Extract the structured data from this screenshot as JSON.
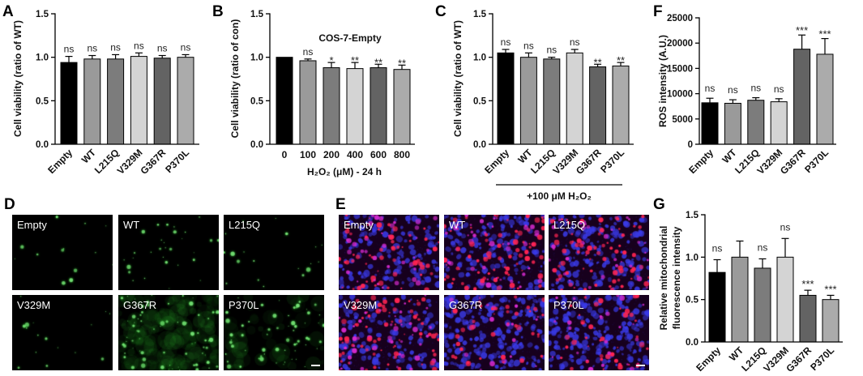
{
  "chart_data": [
    {
      "panel": "A",
      "type": "bar",
      "ylabel": "Cell viability (ratio of WT)",
      "categories": [
        "Empty",
        "WT",
        "L215Q",
        "V329M",
        "G367R",
        "P370L"
      ],
      "values": [
        0.94,
        0.98,
        0.98,
        1.01,
        0.99,
        1.0
      ],
      "errors": [
        0.07,
        0.04,
        0.05,
        0.04,
        0.03,
        0.03
      ],
      "significance": [
        "ns",
        "ns",
        "ns",
        "ns",
        "ns",
        "ns"
      ],
      "ylim": [
        0,
        1.5
      ],
      "yticks": [
        0,
        0.5,
        1.0,
        1.5
      ],
      "ytick_labels": [
        "0.0",
        "0.5",
        "1.0",
        "1.5"
      ],
      "grid": false,
      "colors": [
        "#000000",
        "#9a9a9a",
        "#7c7c7c",
        "#d4d4d4",
        "#636363",
        "#ababab"
      ]
    },
    {
      "panel": "B",
      "type": "bar",
      "title": "COS-7-Empty",
      "xlabel": "H₂O₂ (μM) - 24 h",
      "ylabel": "Cell viability (ratio of con)",
      "categories": [
        "0",
        "100",
        "200",
        "400",
        "600",
        "800"
      ],
      "values": [
        1.0,
        0.96,
        0.88,
        0.87,
        0.88,
        0.86
      ],
      "errors": [
        0,
        0.02,
        0.06,
        0.07,
        0.04,
        0.05
      ],
      "significance": [
        "",
        "ns",
        "*",
        "**",
        "**",
        "**"
      ],
      "ylim": [
        0,
        1.5
      ],
      "yticks": [
        0,
        0.5,
        1.0,
        1.5
      ],
      "ytick_labels": [
        "0.0",
        "0.5",
        "1.0",
        "1.5"
      ],
      "grid": false,
      "colors": [
        "#000000",
        "#9a9a9a",
        "#7c7c7c",
        "#d4d4d4",
        "#636363",
        "#ababab"
      ]
    },
    {
      "panel": "C",
      "type": "bar",
      "xlabel": "+100 μM H₂O₂",
      "ylabel": "Cell viability (ratio of WT)",
      "categories": [
        "Empty",
        "WT",
        "L215Q",
        "V329M",
        "G367R",
        "P370L"
      ],
      "values": [
        1.05,
        1.0,
        0.98,
        1.05,
        0.89,
        0.9
      ],
      "errors": [
        0.04,
        0.05,
        0.02,
        0.04,
        0.03,
        0.04
      ],
      "significance": [
        "ns",
        "ns",
        "ns",
        "ns",
        "**",
        "**"
      ],
      "ylim": [
        0,
        1.5
      ],
      "yticks": [
        0,
        0.5,
        1.0,
        1.5
      ],
      "ytick_labels": [
        "0.0",
        "0.5",
        "1.0",
        "1.5"
      ],
      "grid": false,
      "colors": [
        "#000000",
        "#9a9a9a",
        "#7c7c7c",
        "#d4d4d4",
        "#636363",
        "#ababab"
      ]
    },
    {
      "panel": "F",
      "type": "bar",
      "ylabel": "ROS intensity (A.U.)",
      "categories": [
        "Empty",
        "WT",
        "L215Q",
        "V329M",
        "G367R",
        "P370L"
      ],
      "values": [
        8200,
        8100,
        8700,
        8400,
        18800,
        17800
      ],
      "errors": [
        900,
        700,
        500,
        600,
        2800,
        3100
      ],
      "significance": [
        "ns",
        "ns",
        "ns",
        "ns",
        "***",
        "***"
      ],
      "ylim": [
        0,
        25000
      ],
      "yticks": [
        0,
        5000,
        10000,
        15000,
        20000,
        25000
      ],
      "ytick_labels": [
        "0",
        "5000",
        "10000",
        "15000",
        "20000",
        "25000"
      ],
      "grid": false,
      "colors": [
        "#000000",
        "#9a9a9a",
        "#7c7c7c",
        "#d4d4d4",
        "#636363",
        "#ababab"
      ]
    },
    {
      "panel": "G",
      "type": "bar",
      "ylabel": [
        "Relative mitochondrial",
        "fluorescence intensity"
      ],
      "categories": [
        "Empty",
        "WT",
        "L215Q",
        "V329M",
        "G367R",
        "P370L"
      ],
      "values": [
        0.82,
        1.0,
        0.87,
        1.0,
        0.55,
        0.5
      ],
      "errors": [
        0.15,
        0.19,
        0.11,
        0.22,
        0.06,
        0.05
      ],
      "significance": [
        "ns",
        "",
        "ns",
        "ns",
        "***",
        "***"
      ],
      "ylim": [
        0,
        1.5
      ],
      "yticks": [
        0,
        0.5,
        1.0,
        1.5
      ],
      "ytick_labels": [
        "0.0",
        "0.5",
        "1.0",
        "1.5"
      ],
      "grid": false,
      "colors": [
        "#000000",
        "#9a9a9a",
        "#7c7c7c",
        "#d4d4d4",
        "#636363",
        "#ababab"
      ]
    }
  ],
  "micrographs": [
    {
      "panel": "D",
      "colors": {
        "background": "#000000",
        "signal": "#3be23b"
      },
      "tiles": [
        {
          "label": "Empty"
        },
        {
          "label": "WT"
        },
        {
          "label": "L215Q"
        },
        {
          "label": "V329M"
        },
        {
          "label": "G367R"
        },
        {
          "label": "P370L",
          "scale_bar": true
        }
      ]
    },
    {
      "panel": "E",
      "colors": {
        "background": "#17001d",
        "nuclei": "#3a3ae8",
        "signal": "#ff2452",
        "signal_alt": "#d82ad0"
      },
      "tiles": [
        {
          "label": "Empty"
        },
        {
          "label": "WT"
        },
        {
          "label": "L215Q"
        },
        {
          "label": "V329M"
        },
        {
          "label": "G367R"
        },
        {
          "label": "P370L",
          "scale_bar": true
        }
      ]
    }
  ]
}
